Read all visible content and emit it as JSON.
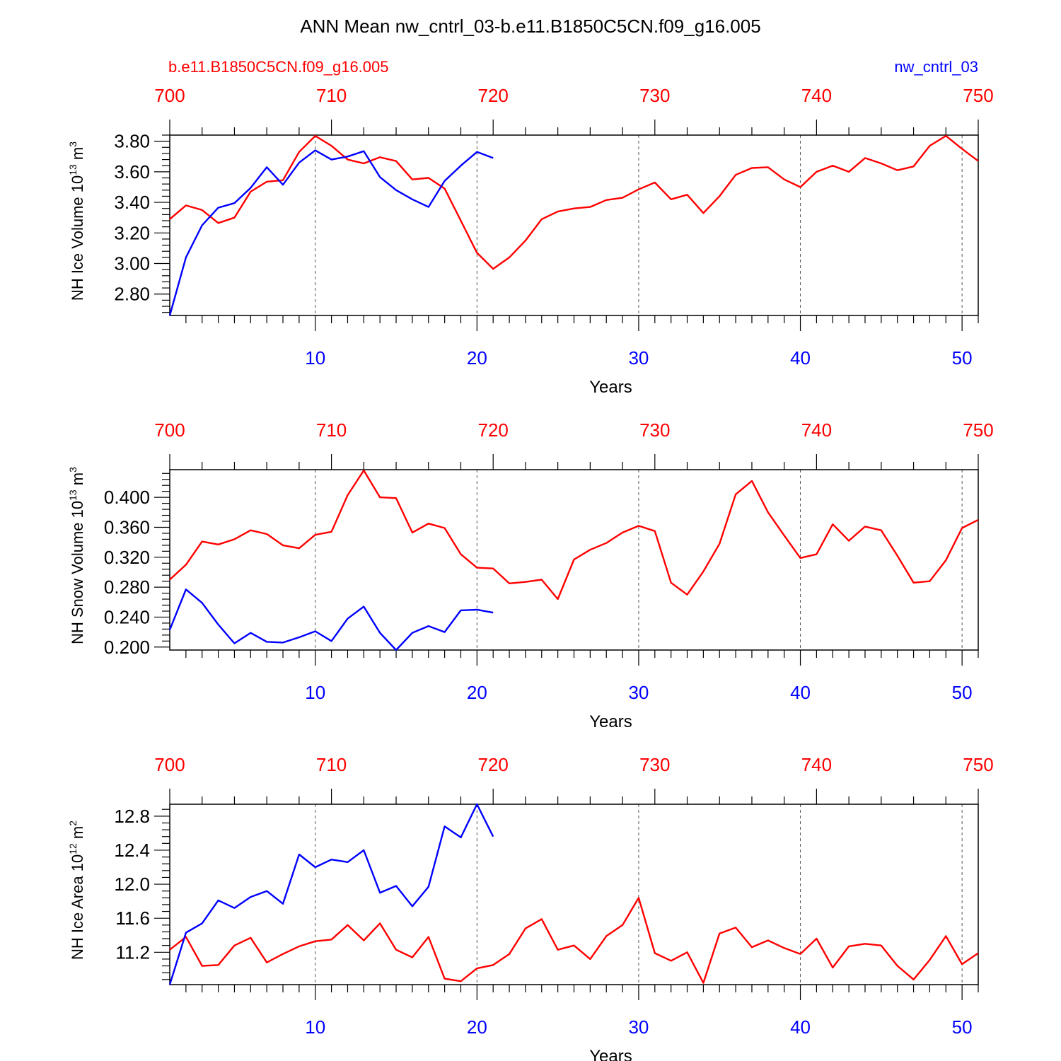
{
  "title": "ANN Mean nw_cntrl_03-b.e11.B1850C5CN.f09_g16.005",
  "case_labels": {
    "left": "b.e11.B1850C5CN.f09_g16.005",
    "right": "nw_cntrl_03"
  },
  "colors": {
    "case1": "#ff0000",
    "case2": "#0000ff",
    "axis": "#000000"
  },
  "chart_data": [
    {
      "type": "line",
      "id": "ice-volume",
      "ylabel_main": "NH Ice Volume 10",
      "ylabel_exp": "13",
      "ylabel_unit": " m",
      "ylabel_unit_exp": "3",
      "xlabel": "Years",
      "xlim": [
        1,
        51
      ],
      "ylim": [
        2.66,
        3.84
      ],
      "yticks": [
        "2.80",
        "3.00",
        "3.20",
        "3.40",
        "3.60",
        "3.80"
      ],
      "top_ticks": [
        "700",
        "710",
        "720",
        "730",
        "740",
        "750"
      ],
      "bottom_ticks": [
        "10",
        "20",
        "30",
        "40",
        "50"
      ],
      "series": [
        {
          "name": "b.e11.B1850C5CN.f09_g16.005",
          "color": "#ff0000",
          "values": [
            3.29,
            3.38,
            3.35,
            3.265,
            3.3,
            3.47,
            3.535,
            3.545,
            3.73,
            3.835,
            3.77,
            3.68,
            3.655,
            3.695,
            3.67,
            3.55,
            3.56,
            3.49,
            3.28,
            3.07,
            2.965,
            3.04,
            3.15,
            3.29,
            3.34,
            3.36,
            3.37,
            3.415,
            3.43,
            3.485,
            3.53,
            3.42,
            3.45,
            3.33,
            3.44,
            3.58,
            3.625,
            3.63,
            3.55,
            3.5,
            3.6,
            3.64,
            3.6,
            3.69,
            3.655,
            3.61,
            3.635,
            3.77,
            3.835,
            3.75,
            3.67
          ]
        },
        {
          "name": "nw_cntrl_03",
          "color": "#0000ff",
          "values": [
            2.66,
            3.04,
            3.25,
            3.365,
            3.395,
            3.495,
            3.63,
            3.515,
            3.66,
            3.74,
            3.68,
            3.7,
            3.735,
            3.565,
            3.48,
            3.42,
            3.37,
            3.54,
            3.64,
            3.73,
            3.69
          ]
        }
      ]
    },
    {
      "type": "line",
      "id": "snow-volume",
      "ylabel_main": "NH Snow Volume 10",
      "ylabel_exp": "13",
      "ylabel_unit": " m",
      "ylabel_unit_exp": "3",
      "xlabel": "Years",
      "xlim": [
        1,
        51
      ],
      "ylim": [
        0.196,
        0.437
      ],
      "yticks": [
        "0.200",
        "0.240",
        "0.280",
        "0.320",
        "0.360",
        "0.400"
      ],
      "top_ticks": [
        "700",
        "710",
        "720",
        "730",
        "740",
        "750"
      ],
      "bottom_ticks": [
        "10",
        "20",
        "30",
        "40",
        "50"
      ],
      "series": [
        {
          "name": "b.e11.B1850C5CN.f09_g16.005",
          "color": "#ff0000",
          "values": [
            0.29,
            0.31,
            0.341,
            0.337,
            0.344,
            0.356,
            0.351,
            0.336,
            0.332,
            0.35,
            0.354,
            0.403,
            0.436,
            0.4,
            0.399,
            0.353,
            0.365,
            0.359,
            0.324,
            0.306,
            0.305,
            0.285,
            0.287,
            0.29,
            0.264,
            0.317,
            0.33,
            0.339,
            0.353,
            0.362,
            0.355,
            0.286,
            0.27,
            0.301,
            0.338,
            0.404,
            0.422,
            0.38,
            0.349,
            0.319,
            0.324,
            0.364,
            0.342,
            0.361,
            0.356,
            0.322,
            0.286,
            0.288,
            0.316,
            0.359,
            0.37
          ]
        },
        {
          "name": "nw_cntrl_03",
          "color": "#0000ff",
          "values": [
            0.223,
            0.277,
            0.259,
            0.23,
            0.205,
            0.219,
            0.207,
            0.206,
            0.213,
            0.221,
            0.208,
            0.238,
            0.254,
            0.219,
            0.196,
            0.219,
            0.228,
            0.22,
            0.249,
            0.25,
            0.246
          ]
        }
      ]
    },
    {
      "type": "line",
      "id": "ice-area",
      "ylabel_main": "NH Ice Area 10",
      "ylabel_exp": "12",
      "ylabel_unit": " m",
      "ylabel_unit_exp": "2",
      "xlabel": "Years",
      "xlim": [
        1,
        51
      ],
      "ylim": [
        10.82,
        12.94
      ],
      "yticks": [
        "11.2",
        "11.6",
        "12.0",
        "12.4",
        "12.8"
      ],
      "top_ticks": [
        "700",
        "710",
        "720",
        "730",
        "740",
        "750"
      ],
      "bottom_ticks": [
        "10",
        "20",
        "30",
        "40",
        "50"
      ],
      "series": [
        {
          "name": "b.e11.B1850C5CN.f09_g16.005",
          "color": "#ff0000",
          "values": [
            11.23,
            11.38,
            11.04,
            11.05,
            11.28,
            11.37,
            11.08,
            11.18,
            11.27,
            11.33,
            11.35,
            11.52,
            11.34,
            11.54,
            11.23,
            11.14,
            11.38,
            10.89,
            10.86,
            11.01,
            11.05,
            11.18,
            11.48,
            11.59,
            11.23,
            11.28,
            11.12,
            11.39,
            11.52,
            11.84,
            11.19,
            11.1,
            11.2,
            10.84,
            11.42,
            11.49,
            11.26,
            11.34,
            11.25,
            11.18,
            11.36,
            11.02,
            11.27,
            11.3,
            11.28,
            11.04,
            10.88,
            11.11,
            11.39,
            11.06,
            11.19
          ]
        },
        {
          "name": "nw_cntrl_03",
          "color": "#0000ff",
          "values": [
            10.82,
            11.43,
            11.54,
            11.81,
            11.72,
            11.85,
            11.92,
            11.77,
            12.35,
            12.2,
            12.29,
            12.26,
            12.4,
            11.9,
            11.98,
            11.74,
            11.97,
            12.68,
            12.55,
            12.94,
            12.56
          ]
        }
      ]
    }
  ]
}
